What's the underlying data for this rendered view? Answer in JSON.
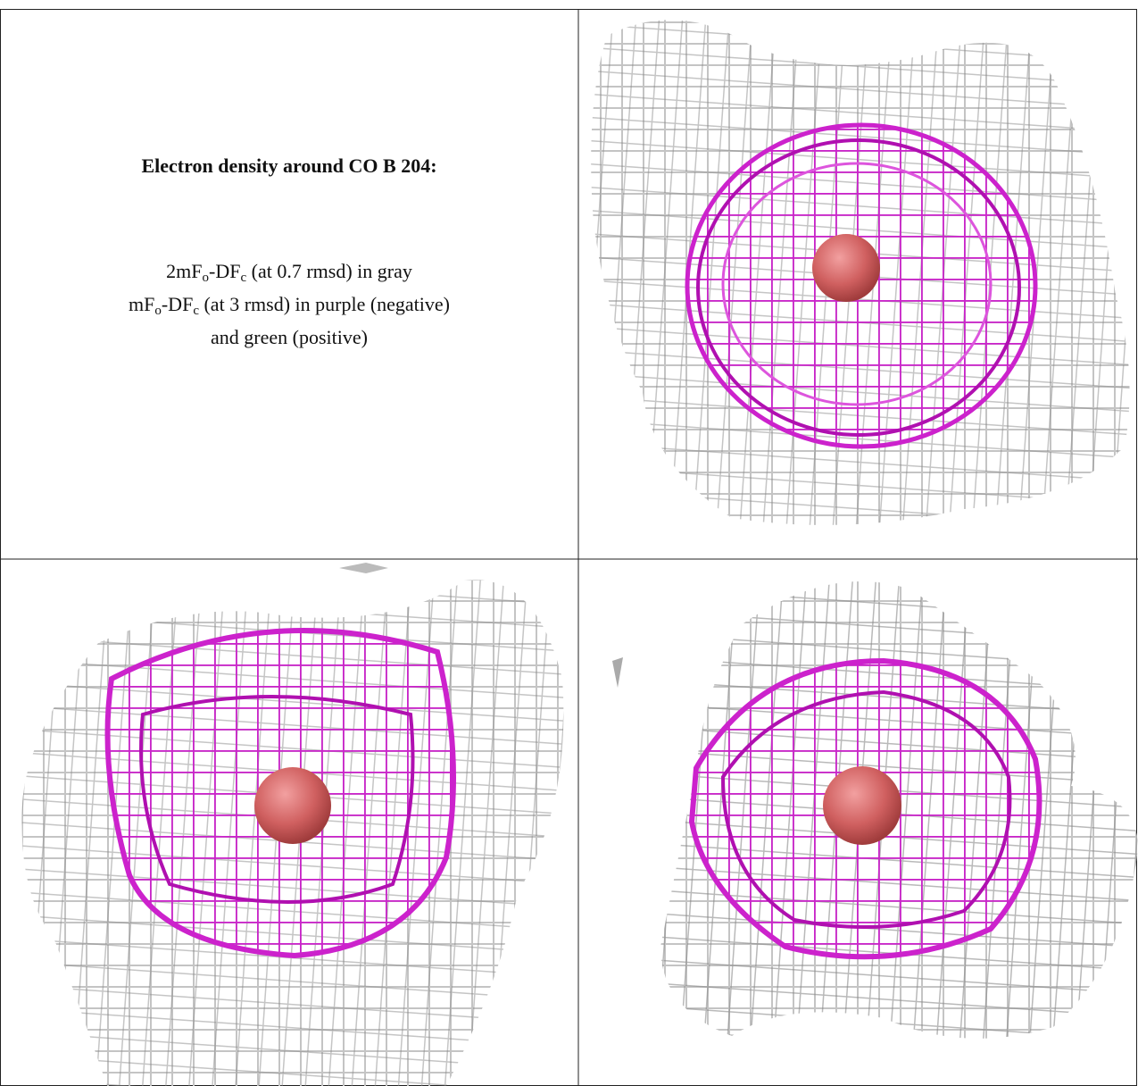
{
  "panel": {
    "title": "Electron density around CO B 204:",
    "lines": [
      [
        "2mF",
        "o",
        "-DF",
        "c",
        " (at 0.7 rmsd) in gray"
      ],
      [
        "mF",
        "o",
        "-DF",
        "c",
        " (at 3 rmsd) in purple (negative)"
      ],
      [
        "and green (positive)"
      ]
    ]
  }
}
